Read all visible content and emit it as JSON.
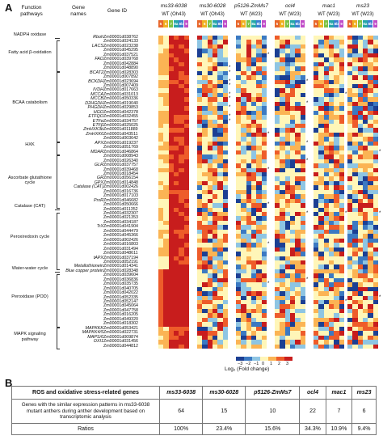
{
  "panelA": {
    "letter": "A",
    "headers": {
      "function_pathways": "Function pathways",
      "gene_names": "Gene names",
      "gene_id": "Gene ID"
    },
    "groups": [
      {
        "name": "ms33-6038",
        "wt": "WT (Oh43)"
      },
      {
        "name": "ms30-6028",
        "wt": "WT (Oh43)"
      },
      {
        "name": "p5126-ZmMs7",
        "wt": "WT (W23)"
      },
      {
        "name": "ocl4",
        "wt": "WT (W23)"
      },
      {
        "name": "mac1",
        "wt": "WT (W23)"
      },
      {
        "name": "ms23",
        "wt": "WT (W23)"
      }
    ],
    "stages": [
      "5",
      "6",
      "7",
      "8a",
      "8b",
      "9"
    ],
    "stage_colors": [
      "#e8662a",
      "#f0b020",
      "#7cc242",
      "#24a6a8",
      "#3a7fd0",
      "#c04cc8"
    ],
    "pathways": [
      {
        "label": "NADPH oxidase",
        "row": 0,
        "rows": 1
      },
      {
        "label": "Fatty acid β-oxidation",
        "row": 1,
        "rows": 7
      },
      {
        "label": "BCAA catabolism",
        "row": 8,
        "rows": 16
      },
      {
        "label": "HXK",
        "row": 24,
        "rows": 3
      },
      {
        "label": "Ascorbate glutathione cycle",
        "row": 27,
        "rows": 12
      },
      {
        "label": "Catalase (CAT)",
        "row": 39,
        "rows": 1
      },
      {
        "label": "Peroxiredoxin cycle",
        "row": 40,
        "rows": 13
      },
      {
        "label": "Water-water cycle",
        "row": 53,
        "rows": 1
      },
      {
        "label": "Peroxidase (POD)",
        "row": 54,
        "rows": 12
      },
      {
        "label": "MAPK signaling pathway",
        "row": 66,
        "rows": 5
      }
    ],
    "gene_names": [
      {
        "label": "Rboh",
        "row": 0
      },
      {
        "label": "LACS",
        "row": 2
      },
      {
        "label": "FAO",
        "row": 5
      },
      {
        "label": "BCAT2",
        "row": 8
      },
      {
        "label": "BCKDH",
        "row": 10
      },
      {
        "label": "IVDH",
        "row": 12
      },
      {
        "label": "MCCA",
        "row": 13
      },
      {
        "label": "MCCB",
        "row": 14
      },
      {
        "label": "D2HGDH",
        "row": 15
      },
      {
        "label": "PHGDH",
        "row": 16
      },
      {
        "label": "HGO",
        "row": 17
      },
      {
        "label": "ETFQO",
        "row": 18
      },
      {
        "label": "ETFα",
        "row": 19
      },
      {
        "label": "ETFβ",
        "row": 20
      },
      {
        "label": "ZmHXK3b",
        "row": 21
      },
      {
        "label": "ZmHXK6",
        "row": 22
      },
      {
        "label": "APX",
        "row": 24
      },
      {
        "label": "MDAR",
        "row": 26
      },
      {
        "label": "GLR",
        "row": 29
      },
      {
        "label": "GR",
        "row": 32
      },
      {
        "label": "GPX",
        "row": 33
      },
      {
        "label": "Catalase (CAT)",
        "row": 34
      },
      {
        "label": "PrxR",
        "row": 37
      },
      {
        "label": "TrX",
        "row": 43
      },
      {
        "label": "tAPX",
        "row": 50
      },
      {
        "label": "Metallothionein",
        "row": 52
      },
      {
        "label": "Blue copper protein",
        "row": 53
      },
      {
        "label": "MAPKKK",
        "row": 66
      },
      {
        "label": "MAPKK4/5",
        "row": 67
      },
      {
        "label": "MAPS/6",
        "row": 68
      },
      {
        "label": "OXI1",
        "row": 69
      }
    ],
    "gene_ids": [
      "Zm00001d038762",
      "Zm00001d024133",
      "Zm00001d023238",
      "Zm00001d045295",
      "Zm00001d037521",
      "Zm00001d039768",
      "Zm00001d042884",
      "Zm00001d048890",
      "Zm00001d028303",
      "Zm00001d007892",
      "Zm00001d023694",
      "Zm00001d007409",
      "Zm00001d017663",
      "Zm00001d031013",
      "Zm00001d050336",
      "Zm00001d019040",
      "Zm00001d029853",
      "Zm00001d042378",
      "Zm00001d032455",
      "Zm00001d034757",
      "Zm00001d025025",
      "Zm00001d011889",
      "Zm00001d043511",
      "Zm00001d003642",
      "Zm00001d019237",
      "Zm00001d051769",
      "Zm00001d046864",
      "Zm00001d008943",
      "Zm00001d026340",
      "Zm00001d037757",
      "Zm00001d039468",
      "Zm00001d018454",
      "Zm00001d056154",
      "Zm00001d014848",
      "Zm00001d002426",
      "Zm00001d016736",
      "Zm00001d017103",
      "Zm00001d046682",
      "Zm00001d050666",
      "Zm00001d011352",
      "Zm00001d032307",
      "Zm00001d021353",
      "Zm00001d034187",
      "Zm00001d041904",
      "Zm00001d044479",
      "Zm00001d045366",
      "Zm00001d002426",
      "Zm00001d016803",
      "Zm00001d031494",
      "Zm00001d048611",
      "Zm00001d037194",
      "Zm00001d052191",
      "Zm00001d014341",
      "Zm00001d028348",
      "Zm00001d039604",
      "Zm00001d036836",
      "Zm00001d035735",
      "Zm00001d040705",
      "Zm00001d042022",
      "Zm00001d052335",
      "Zm00001d052147",
      "Zm00001d045064",
      "Zm00001d047758",
      "Zm00001d016205",
      "Zm00001d049320",
      "Zm00001d018302",
      "Zm00001d053421",
      "Zm00001d022731",
      "Zm00001d009874",
      "Zm00001d031456",
      "Zm00001d044812"
    ],
    "colorbar": {
      "label": "Log₂ (Fold change)",
      "ticks": [
        "−3",
        "−2",
        "−1",
        "0",
        "1",
        "2",
        "3"
      ],
      "colors": [
        "#1c3f93",
        "#3b79c2",
        "#8ec5e3",
        "#fff6b8",
        "#fbb454",
        "#ee5c2a",
        "#c81d1d"
      ]
    }
  },
  "panelB": {
    "letter": "B",
    "table": {
      "header": [
        "ROS and oxidative stress-related genes",
        "ms33-6038",
        "ms30-6028",
        "p5126-ZmMs7",
        "ocl4",
        "mac1",
        "ms23"
      ],
      "rows": [
        {
          "label": "Genes with the similar expression patterns in ms33-6038 mutant anthers during anther development based on transcriptomic analysis",
          "values": [
            "64",
            "15",
            "10",
            "22",
            "7",
            "6"
          ]
        },
        {
          "label": "Ratios",
          "values": [
            "100%",
            "23.4%",
            "15.6%",
            "34.3%",
            "10.9%",
            "9.4%"
          ]
        }
      ]
    }
  }
}
